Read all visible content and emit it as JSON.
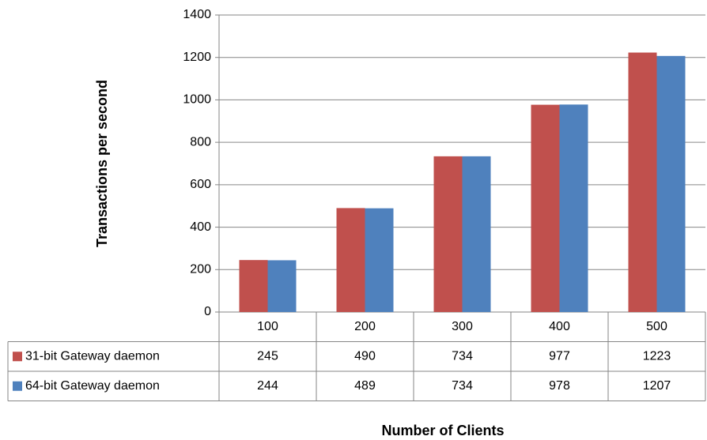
{
  "chart_data": {
    "type": "bar",
    "categories": [
      "100",
      "200",
      "300",
      "400",
      "500"
    ],
    "series": [
      {
        "name": "31-bit Gateway daemon",
        "color": "#c0504d",
        "values": [
          245,
          490,
          734,
          977,
          1223
        ]
      },
      {
        "name": "64-bit Gateway daemon",
        "color": "#4f81bd",
        "values": [
          244,
          489,
          734,
          978,
          1207
        ]
      }
    ],
    "ylim": [
      0,
      1400
    ],
    "yticks": [
      0,
      200,
      400,
      600,
      800,
      1000,
      1200,
      1400
    ],
    "grid": true,
    "y_label": "Transactions per second",
    "x_label": "Number of Clients"
  }
}
